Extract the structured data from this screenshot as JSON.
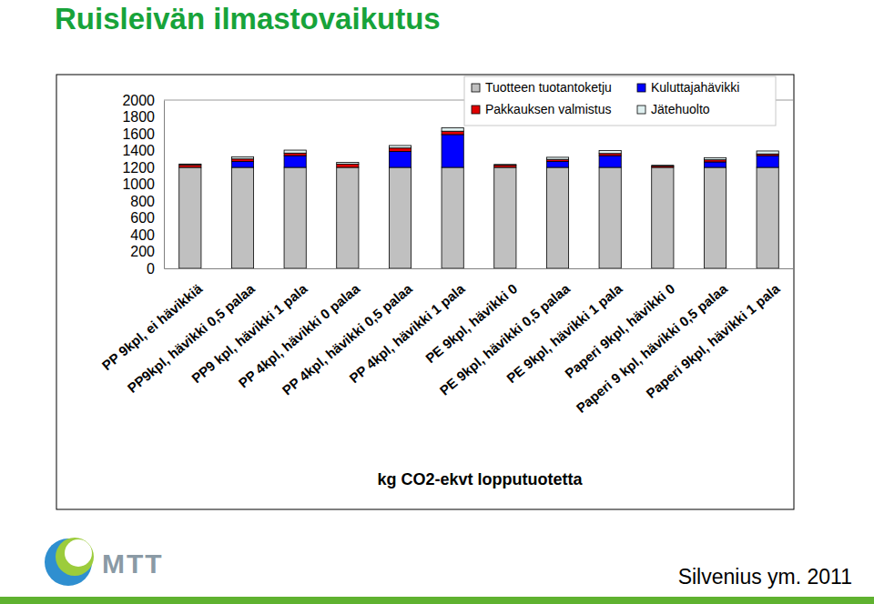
{
  "chart_data": {
    "type": "bar",
    "title": "Ruisleivän ilmastovaikutus",
    "x_label": "kg CO2-ekvt lopputuotetta",
    "annotations": [
      "Silvenius ym. 2011",
      "MTT"
    ],
    "stacked": true,
    "legend": "top-right",
    "grid": false,
    "categories": [
      "PP 9kpl, ei hävikkiä",
      "PP9kpl, hävikki 0,5 palaa",
      "PP9 kpl, hävikki 1 pala",
      "PP 4kpl, hävikki 0 palaa",
      "PP 4kpl, hävikki 0,5 palaa",
      "PP 4kpl, hävikki 1 pala",
      "PE 9kpl, hävikki 0",
      "PE 9kpl, hävikki 0,5 palaa",
      "PE 9kpl, hävikki 1 pala",
      "Paperi 9kpl, hävikki 0",
      "Paperi 9 kpl, hävikki 0,5 palaa",
      "Paperi 9kpl, hävikki 1 pala"
    ],
    "series": [
      {
        "name": "Tuotteen tuotantoketju",
        "color": "#c0c0c0",
        "values": [
          1200,
          1200,
          1200,
          1200,
          1200,
          1200,
          1200,
          1200,
          1200,
          1200,
          1200,
          1200
        ]
      },
      {
        "name": "Kuluttajahävikki",
        "color": "#0000ff",
        "values": [
          0,
          70,
          140,
          0,
          190,
          390,
          0,
          70,
          140,
          0,
          65,
          140
        ]
      },
      {
        "name": "Pakkauksen valmistus",
        "color": "#e00000",
        "values": [
          30,
          30,
          30,
          40,
          40,
          40,
          25,
          25,
          25,
          15,
          25,
          20
        ]
      },
      {
        "name": "Jätehuolto",
        "color": "#dff0f0",
        "values": [
          10,
          25,
          35,
          20,
          30,
          40,
          10,
          25,
          35,
          10,
          25,
          35
        ]
      }
    ],
    "ylim": [
      0,
      2000
    ],
    "yticks": [
      0,
      200,
      400,
      600,
      800,
      1000,
      1200,
      1400,
      1600,
      1800,
      2000
    ]
  }
}
